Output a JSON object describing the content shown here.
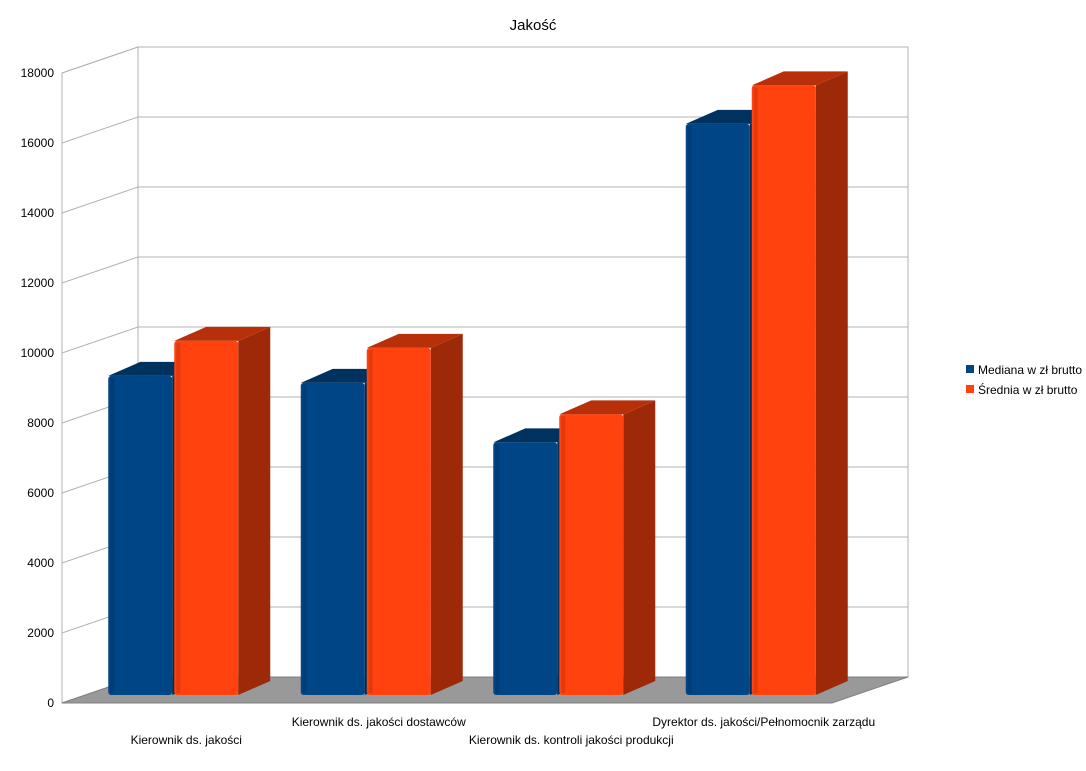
{
  "chart_data": {
    "type": "bar",
    "title": "Jakość",
    "categories": [
      "Kierownik ds. jakości",
      "Kierownik ds. jakości dostawców",
      "Kierownik ds. kontroli jakości produkcji",
      "Dyrektor  ds. jakości/Pełnomocnik zarządu"
    ],
    "series": [
      {
        "name": "Mediana w zł brutto",
        "values": [
          9300,
          9100,
          7400,
          16500
        ],
        "color": "#004586"
      },
      {
        "name": "Średnia w zł brutto",
        "values": [
          10300,
          10100,
          8200,
          17600
        ],
        "color": "#ff420e"
      }
    ],
    "ylim": [
      0,
      18000
    ],
    "yticks": [
      0,
      2000,
      4000,
      6000,
      8000,
      10000,
      12000,
      14000,
      16000,
      18000
    ],
    "grid": true,
    "legend": "right",
    "style": "3d-bar"
  }
}
